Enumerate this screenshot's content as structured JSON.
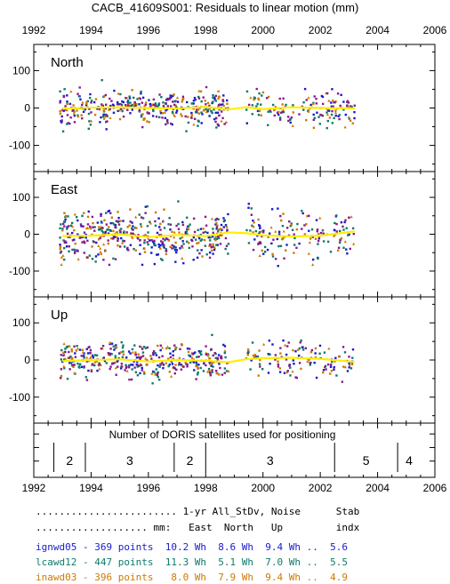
{
  "figure": {
    "title": "CACB_41609S001: Residuals to linear motion (mm)",
    "satellite_caption": "Number of DORIS satellites used for positioning"
  },
  "colors": {
    "series_blue": "#1a1acc",
    "series_teal": "#0d7a6b",
    "series_orange": "#cc7a00",
    "series_purple": "#8a1a8a",
    "smooth_curve": "#ffee00"
  },
  "chart_data": [
    {
      "type": "scatter",
      "panel": "North",
      "xlim": [
        1992,
        2006
      ],
      "ylim": [
        -170,
        170
      ],
      "x_ticks": [
        "1992",
        "1994",
        "1996",
        "1998",
        "2000",
        "2002",
        "2004",
        "2006"
      ],
      "y_ticks": [
        "100",
        "0",
        "-100"
      ],
      "grid": false,
      "point_cloud": {
        "x_ranges": [
          [
            1992.9,
            1998.8
          ],
          [
            1999.4,
            2003.2
          ]
        ],
        "approx_spread_mm": 42,
        "points_per_series": 130
      },
      "smooth_curve": {
        "x": [
          1993.0,
          1994.0,
          1995.0,
          1996.0,
          1997.0,
          1998.0,
          1998.8,
          1999.4,
          2000.0,
          2001.0,
          2002.0,
          2003.2
        ],
        "y": [
          -2,
          1,
          2,
          0,
          -1,
          3,
          -4,
          2,
          -3,
          2,
          0,
          -1
        ]
      }
    },
    {
      "type": "scatter",
      "panel": "East",
      "xlim": [
        1992,
        2006
      ],
      "ylim": [
        -170,
        170
      ],
      "x_ticks": [
        "1992",
        "1994",
        "1996",
        "1998",
        "2000",
        "2002",
        "2004",
        "2006"
      ],
      "y_ticks": [
        "100",
        "0",
        "-100"
      ],
      "grid": false,
      "point_cloud": {
        "x_ranges": [
          [
            1992.9,
            1998.8
          ],
          [
            1999.4,
            2003.2
          ]
        ],
        "approx_spread_mm": 55,
        "points_per_series": 150
      },
      "smooth_curve": {
        "x": [
          1993.0,
          1994.0,
          1995.0,
          1996.0,
          1997.0,
          1998.0,
          1998.8,
          1999.4,
          2000.0,
          2001.0,
          2002.0,
          2003.2
        ],
        "y": [
          -5,
          -4,
          0,
          -8,
          -2,
          -5,
          5,
          3,
          -3,
          -6,
          -4,
          8
        ]
      }
    },
    {
      "type": "scatter",
      "panel": "Up",
      "xlim": [
        1992,
        2006
      ],
      "ylim": [
        -170,
        170
      ],
      "x_ticks": [
        "1992",
        "1994",
        "1996",
        "1998",
        "2000",
        "2002",
        "2004",
        "2006"
      ],
      "y_ticks": [
        "100",
        "0",
        "-100"
      ],
      "grid": false,
      "point_cloud": {
        "x_ranges": [
          [
            1992.9,
            1998.8
          ],
          [
            1999.4,
            2003.2
          ]
        ],
        "approx_spread_mm": 40,
        "points_per_series": 130
      },
      "smooth_curve": {
        "x": [
          1993.0,
          1994.0,
          1995.0,
          1996.0,
          1997.0,
          1998.0,
          1998.8,
          1999.4,
          2000.0,
          2001.0,
          2002.0,
          2003.2
        ],
        "y": [
          -3,
          0,
          2,
          -4,
          0,
          -2,
          -6,
          2,
          5,
          6,
          3,
          -5
        ]
      }
    },
    {
      "type": "table",
      "panel": "satellites",
      "xlim": [
        1992,
        2006
      ],
      "x_ticks": [
        "1992",
        "1994",
        "1996",
        "1998",
        "2000",
        "2002",
        "2004",
        "2006"
      ],
      "segments": [
        {
          "start": 1992.7,
          "end": 1993.8,
          "count": "2"
        },
        {
          "start": 1993.8,
          "end": 1996.9,
          "count": "3"
        },
        {
          "start": 1996.9,
          "end": 1998.0,
          "count": "2"
        },
        {
          "start": 1998.0,
          "end": 2002.5,
          "count": "3"
        },
        {
          "start": 2002.5,
          "end": 2004.7,
          "count": "5"
        },
        {
          "start": 2004.7,
          "end": 2005.5,
          "count": "4"
        }
      ]
    }
  ],
  "stats_table": {
    "header1": "........................ 1-yr All_StDv, Noise      Stab",
    "header2": "................... mm:   East  North   Up         indx",
    "rows": [
      {
        "text": "ignwd05 - 369 points  10.2 Wh  8.6 Wh  9.4 Wh ..  5.6",
        "color": "#1a1acc"
      },
      {
        "text": "lcawd12 - 447 points  11.3 Wh  5.1 Wh  7.0 Wh ..  5.5",
        "color": "#0d7a6b"
      },
      {
        "text": "inawd03 - 396 points   8.0 Wh  7.9 Wh  9.4 Wh ..  4.9",
        "color": "#cc7a00"
      }
    ]
  }
}
